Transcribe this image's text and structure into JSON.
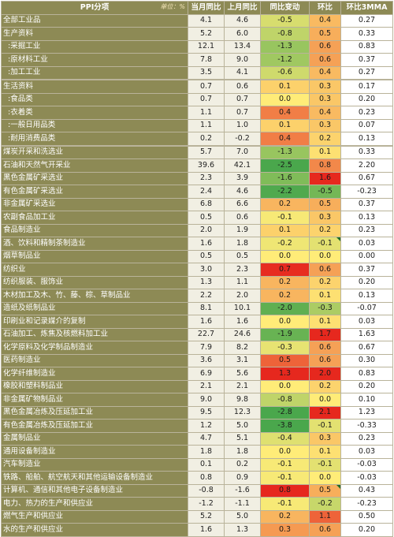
{
  "chart_data": {
    "type": "table",
    "header": {
      "category": "PPI分项",
      "unit": "单位：%",
      "columns": [
        "当月同比",
        "上月同比",
        "同比变动",
        "环比",
        "环比3MMA"
      ]
    },
    "rows": [
      {
        "name": "全部工业品",
        "indent": false,
        "cur": "4.1",
        "prev": "4.6",
        "chg": "-0.5",
        "mom": "0.4",
        "mma": "0.27"
      },
      {
        "name": "生产资料",
        "indent": false,
        "cur": "5.2",
        "prev": "6.0",
        "chg": "-0.8",
        "mom": "0.5",
        "mma": "0.33"
      },
      {
        "name": ":采掘工业",
        "indent": true,
        "cur": "12.1",
        "prev": "13.4",
        "chg": "-1.3",
        "mom": "0.6",
        "mma": "0.83"
      },
      {
        "name": ":原材料工业",
        "indent": true,
        "cur": "7.8",
        "prev": "9.0",
        "chg": "-1.2",
        "mom": "0.6",
        "mma": "0.37"
      },
      {
        "name": ":加工工业",
        "indent": true,
        "cur": "3.5",
        "prev": "4.1",
        "chg": "-0.6",
        "mom": "0.4",
        "mma": "0.27"
      },
      {
        "name": "生活资料",
        "indent": false,
        "cur": "0.7",
        "prev": "0.6",
        "chg": "0.1",
        "mom": "0.3",
        "mma": "0.17"
      },
      {
        "name": ":食品类",
        "indent": true,
        "cur": "0.7",
        "prev": "0.7",
        "chg": "0.0",
        "mom": "0.3",
        "mma": "0.20"
      },
      {
        "name": ":衣着类",
        "indent": true,
        "cur": "1.1",
        "prev": "0.7",
        "chg": "0.4",
        "mom": "0.4",
        "mma": "0.23"
      },
      {
        "name": ":一般日用品类",
        "indent": true,
        "cur": "1.1",
        "prev": "1.0",
        "chg": "0.1",
        "mom": "0.3",
        "mma": "0.07"
      },
      {
        "name": ":耐用消费品类",
        "indent": true,
        "cur": "0.2",
        "prev": "-0.2",
        "chg": "0.4",
        "mom": "0.2",
        "mma": "0.13"
      },
      {
        "name": "煤炭开采和洗选业",
        "indent": false,
        "cur": "5.7",
        "prev": "7.0",
        "chg": "-1.3",
        "mom": "0.1",
        "mma": "0.33"
      },
      {
        "name": "石油和天然气开采业",
        "indent": false,
        "cur": "39.6",
        "prev": "42.1",
        "chg": "-2.5",
        "mom": "0.8",
        "mma": "2.20"
      },
      {
        "name": "黑色金属矿采选业",
        "indent": false,
        "cur": "2.3",
        "prev": "3.9",
        "chg": "-1.6",
        "mom": "1.6",
        "mma": "0.67"
      },
      {
        "name": "有色金属矿采选业",
        "indent": false,
        "cur": "2.4",
        "prev": "4.6",
        "chg": "-2.2",
        "mom": "-0.5",
        "mma": "-0.23"
      },
      {
        "name": "非金属矿采选业",
        "indent": false,
        "cur": "6.8",
        "prev": "6.6",
        "chg": "0.2",
        "mom": "0.5",
        "mma": "0.37"
      },
      {
        "name": "农副食品加工业",
        "indent": false,
        "cur": "0.5",
        "prev": "0.6",
        "chg": "-0.1",
        "mom": "0.3",
        "mma": "0.13"
      },
      {
        "name": "食品制造业",
        "indent": false,
        "cur": "2.0",
        "prev": "1.9",
        "chg": "0.1",
        "mom": "0.2",
        "mma": "0.23"
      },
      {
        "name": "酒、饮料和精制茶制造业",
        "indent": false,
        "cur": "1.6",
        "prev": "1.8",
        "chg": "-0.2",
        "mom": "-0.1",
        "mma": "0.03"
      },
      {
        "name": "烟草制品业",
        "indent": false,
        "cur": "0.5",
        "prev": "0.5",
        "chg": "0.0",
        "mom": "0.0",
        "mma": "0.00"
      },
      {
        "name": "纺织业",
        "indent": false,
        "cur": "3.0",
        "prev": "2.3",
        "chg": "0.7",
        "mom": "0.6",
        "mma": "0.37"
      },
      {
        "name": "纺织服装、服饰业",
        "indent": false,
        "cur": "1.3",
        "prev": "1.1",
        "chg": "0.2",
        "mom": "0.2",
        "mma": "0.20"
      },
      {
        "name": "木材加工及木、竹、藤、棕、草制品业",
        "indent": false,
        "cur": "2.2",
        "prev": "2.0",
        "chg": "0.2",
        "mom": "0.1",
        "mma": "0.13"
      },
      {
        "name": "造纸及纸制品业",
        "indent": false,
        "cur": "8.1",
        "prev": "10.1",
        "chg": "-2.0",
        "mom": "-0.3",
        "mma": "-0.07"
      },
      {
        "name": "印刷业和记录媒介的复制",
        "indent": false,
        "cur": "1.6",
        "prev": "1.6",
        "chg": "0.0",
        "mom": "0.1",
        "mma": "0.03"
      },
      {
        "name": "石油加工、炼焦及核燃料加工业",
        "indent": false,
        "cur": "22.7",
        "prev": "24.6",
        "chg": "-1.9",
        "mom": "1.7",
        "mma": "1.63"
      },
      {
        "name": "化学原料及化学制品制造业",
        "indent": false,
        "cur": "7.9",
        "prev": "8.2",
        "chg": "-0.3",
        "mom": "0.6",
        "mma": "0.67"
      },
      {
        "name": "医药制造业",
        "indent": false,
        "cur": "3.6",
        "prev": "3.1",
        "chg": "0.5",
        "mom": "0.6",
        "mma": "0.30"
      },
      {
        "name": "化学纤维制造业",
        "indent": false,
        "cur": "6.9",
        "prev": "5.6",
        "chg": "1.3",
        "mom": "2.0",
        "mma": "0.83"
      },
      {
        "name": "橡胶和塑料制品业",
        "indent": false,
        "cur": "2.1",
        "prev": "2.1",
        "chg": "0.0",
        "mom": "0.2",
        "mma": "0.20"
      },
      {
        "name": "非金属矿物制品业",
        "indent": false,
        "cur": "9.0",
        "prev": "9.8",
        "chg": "-0.8",
        "mom": "0.0",
        "mma": "0.10"
      },
      {
        "name": "黑色金属冶炼及压延加工业",
        "indent": false,
        "cur": "9.5",
        "prev": "12.3",
        "chg": "-2.8",
        "mom": "2.1",
        "mma": "1.23"
      },
      {
        "name": "有色金属冶炼及压延加工业",
        "indent": false,
        "cur": "1.2",
        "prev": "5.0",
        "chg": "-3.8",
        "mom": "-0.1",
        "mma": "-0.33"
      },
      {
        "name": "金属制品业",
        "indent": false,
        "cur": "4.7",
        "prev": "5.1",
        "chg": "-0.4",
        "mom": "0.3",
        "mma": "0.23"
      },
      {
        "name": "通用设备制造业",
        "indent": false,
        "cur": "1.8",
        "prev": "1.8",
        "chg": "0.0",
        "mom": "0.1",
        "mma": "0.03"
      },
      {
        "name": "汽车制造业",
        "indent": false,
        "cur": "0.1",
        "prev": "0.2",
        "chg": "-0.1",
        "mom": "-0.1",
        "mma": "-0.03"
      },
      {
        "name": "铁路、船舶、航空航天和其他运输设备制造业",
        "indent": false,
        "cur": "0.8",
        "prev": "0.9",
        "chg": "-0.1",
        "mom": "0.0",
        "mma": "-0.03"
      },
      {
        "name": "计算机、通信和其他电子设备制造业",
        "indent": false,
        "cur": "-0.8",
        "prev": "-1.6",
        "chg": "0.8",
        "mom": "0.5",
        "mma": "0.43"
      },
      {
        "name": "电力、热力的生产和供应业",
        "indent": false,
        "cur": "-1.2",
        "prev": "-1.1",
        "chg": "-0.1",
        "mom": "-0.2",
        "mma": "-0.23"
      },
      {
        "name": "燃气生产和供应业",
        "indent": false,
        "cur": "5.2",
        "prev": "5.0",
        "chg": "0.2",
        "mom": "1.1",
        "mma": "0.50"
      },
      {
        "name": "水的生产和供应业",
        "indent": false,
        "cur": "1.6",
        "prev": "1.3",
        "chg": "0.3",
        "mom": "0.6",
        "mma": "0.20"
      }
    ]
  }
}
